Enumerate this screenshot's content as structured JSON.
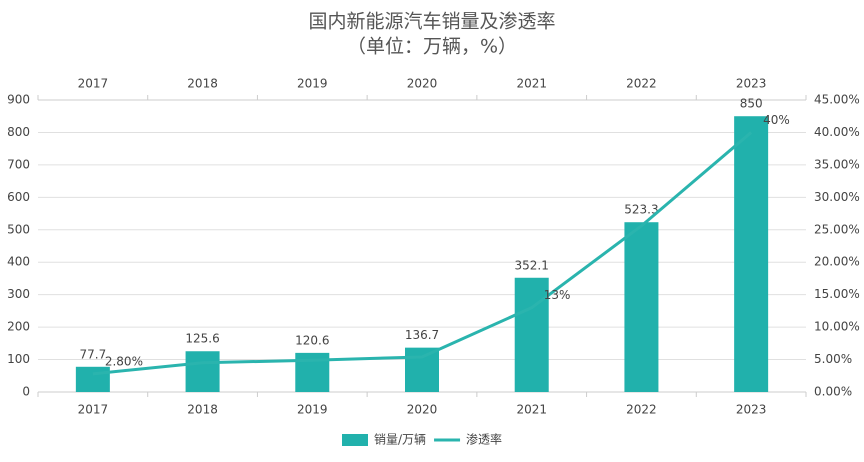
{
  "chart_data": {
    "type": "bar-line",
    "title": "国内新能源汽车销量及渗透率",
    "subtitle": "（单位：万辆，%）",
    "categories": [
      "2017",
      "2018",
      "2019",
      "2020",
      "2021",
      "2022",
      "2023"
    ],
    "series": [
      {
        "name": "销量/万辆",
        "type": "bar",
        "color": "#21b1ac",
        "values": [
          77.7,
          125.6,
          120.6,
          136.7,
          352.1,
          523.3,
          850
        ]
      },
      {
        "name": "渗透率",
        "type": "line",
        "axis": "y2",
        "color": "#2ab4ae",
        "values": [
          2.8,
          4.5,
          4.9,
          5.4,
          13,
          25.6,
          40
        ],
        "value_labels": [
          "2.80%",
          null,
          null,
          null,
          "13%",
          null,
          "40%"
        ]
      }
    ],
    "ylim": [
      0,
      900
    ],
    "yticks": [
      0,
      100,
      200,
      300,
      400,
      500,
      600,
      700,
      800,
      900
    ],
    "y2lim": [
      0,
      45
    ],
    "y2ticks": [
      {
        "value": 0,
        "label": "0.00%"
      },
      {
        "value": 5,
        "label": "5.00%"
      },
      {
        "value": 10,
        "label": "10.00%"
      },
      {
        "value": 15,
        "label": "15.00%"
      },
      {
        "value": 20,
        "label": "20.00%"
      },
      {
        "value": 25,
        "label": "25.00%"
      },
      {
        "value": 30,
        "label": "30.00%"
      },
      {
        "value": 35,
        "label": "35.00%"
      },
      {
        "value": 40,
        "label": "40.00%"
      },
      {
        "value": 45,
        "label": "45.00%"
      }
    ],
    "grid": true,
    "legend": "bottom"
  }
}
